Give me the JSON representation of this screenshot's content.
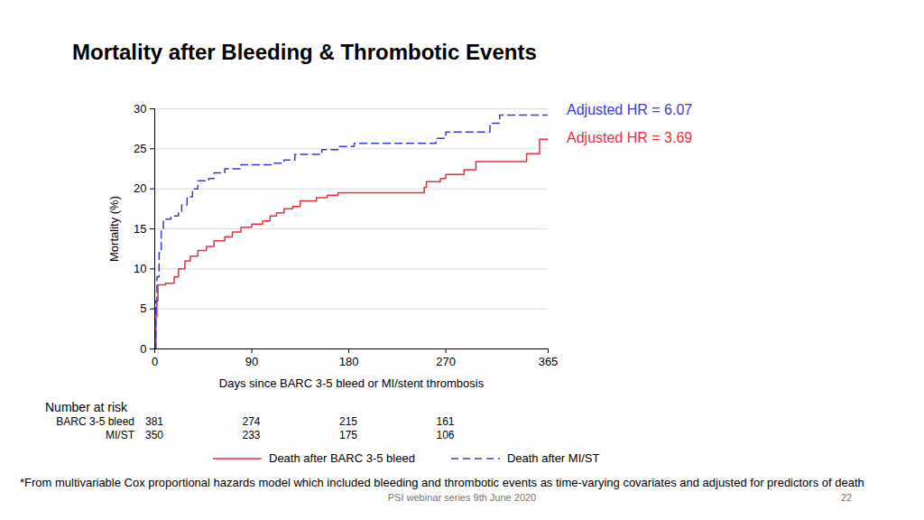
{
  "chart_data": {
    "type": "line",
    "title": "Mortality after Bleeding & Thrombotic Events",
    "x_label": "Days since BARC 3-5 bleed or MI/stent thrombosis",
    "y_label": "Mortality (%)",
    "xlim": [
      0,
      365
    ],
    "xticks": [
      0,
      90,
      180,
      270,
      365
    ],
    "ylim": [
      0,
      30
    ],
    "yticks": [
      0,
      5,
      10,
      15,
      20,
      25,
      30
    ],
    "grid": true,
    "series": [
      {
        "name": "Death after BARC 3-5 bleed",
        "color": "#e8303a",
        "line_style": "solid",
        "x": [
          0,
          1,
          2,
          3,
          10,
          18,
          22,
          28,
          33,
          40,
          48,
          55,
          65,
          72,
          80,
          90,
          100,
          107,
          113,
          120,
          128,
          135,
          150,
          160,
          170,
          250,
          252,
          265,
          270,
          287,
          298,
          345,
          357,
          365
        ],
        "values": [
          0,
          4,
          6,
          8,
          8.2,
          9,
          10,
          11,
          11.6,
          12.3,
          12.8,
          13.5,
          14,
          14.6,
          15.2,
          15.6,
          16,
          16.6,
          17,
          17.5,
          17.8,
          18.5,
          18.9,
          19.2,
          19.5,
          20.2,
          20.9,
          21.3,
          21.8,
          22.4,
          23.4,
          24.4,
          26.2,
          26.2
        ]
      },
      {
        "name": "Death after MI/ST",
        "color": "#3a3ad6",
        "line_style": "dashed",
        "x": [
          0,
          1,
          2,
          4,
          6,
          8,
          15,
          22,
          25,
          30,
          35,
          40,
          50,
          55,
          65,
          80,
          110,
          120,
          130,
          155,
          170,
          185,
          261,
          270,
          311,
          320,
          365
        ],
        "values": [
          0,
          6,
          9,
          12,
          15,
          16.2,
          16.6,
          17,
          18,
          19,
          20,
          21,
          21.3,
          22,
          22.5,
          23,
          23.2,
          23.6,
          24.3,
          24.9,
          25.3,
          25.7,
          26.3,
          27.1,
          28.2,
          29.2,
          29.2
        ]
      }
    ],
    "annotations": [
      {
        "text": "Adjusted HR = 6.07",
        "color": "#3a3ad6"
      },
      {
        "text": "Adjusted HR = 3.69",
        "color": "#e8303a"
      }
    ],
    "number_at_risk": {
      "title": "Number at risk",
      "days": [
        0,
        90,
        180,
        270
      ],
      "rows": [
        {
          "name": "BARC 3-5 bleed",
          "values": [
            381,
            274,
            215,
            161
          ]
        },
        {
          "name": "MI/ST",
          "values": [
            350,
            233,
            175,
            106
          ]
        }
      ]
    }
  },
  "footnote": "*From multivariable Cox proportional hazards model which included bleeding and thrombotic events as time-varying covariates and adjusted for predictors of death",
  "footer": {
    "text": "PSI webinar series 9th June 2020",
    "page": "22"
  }
}
